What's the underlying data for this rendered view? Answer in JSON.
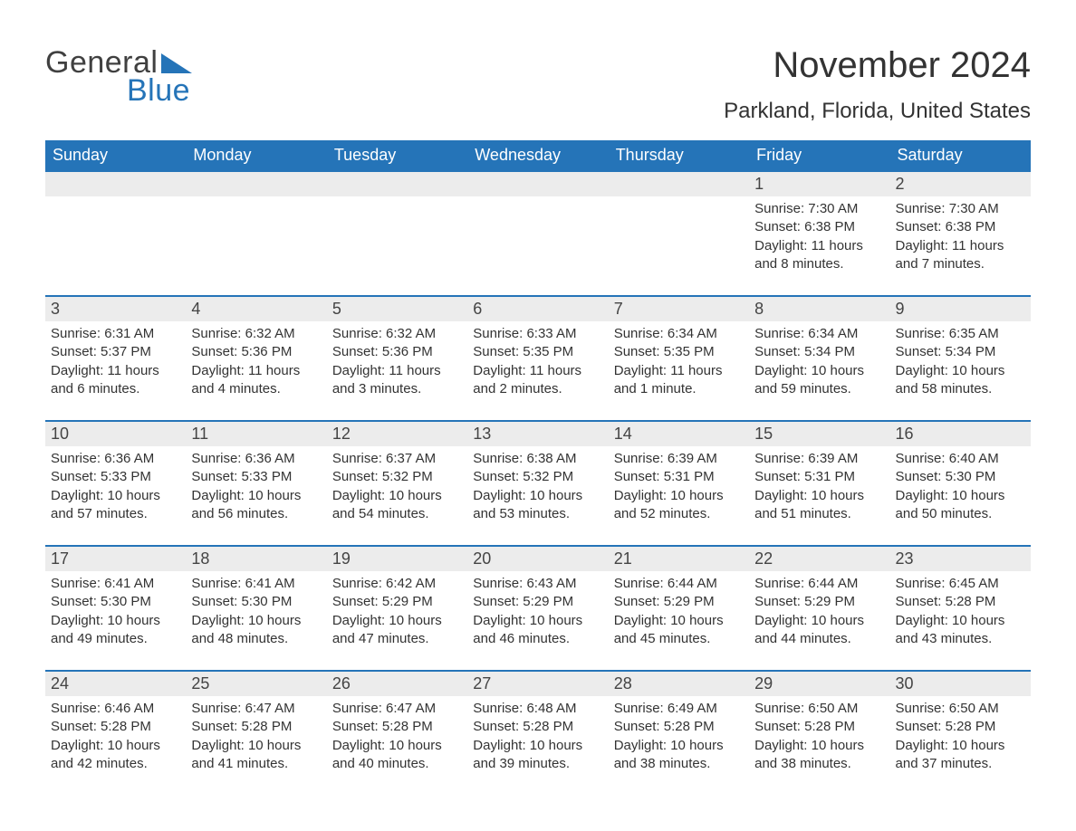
{
  "brand": {
    "word1": "General",
    "word2": "Blue",
    "word1_color": "#404040",
    "word2_color": "#2574b8"
  },
  "title": "November 2024",
  "location": "Parkland, Florida, United States",
  "colors": {
    "header_bg": "#2574b8",
    "header_text": "#ffffff",
    "daynum_bg": "#ececec",
    "row_border": "#2574b8",
    "body_text": "#333333"
  },
  "fonts": {
    "title_size": 40,
    "location_size": 24,
    "dayheader_size": 18,
    "daynum_size": 18,
    "cell_size": 15
  },
  "day_headers": [
    "Sunday",
    "Monday",
    "Tuesday",
    "Wednesday",
    "Thursday",
    "Friday",
    "Saturday"
  ],
  "weeks": [
    [
      null,
      null,
      null,
      null,
      null,
      {
        "n": "1",
        "sunrise": "Sunrise: 7:30 AM",
        "sunset": "Sunset: 6:38 PM",
        "daylight": "Daylight: 11 hours and 8 minutes."
      },
      {
        "n": "2",
        "sunrise": "Sunrise: 7:30 AM",
        "sunset": "Sunset: 6:38 PM",
        "daylight": "Daylight: 11 hours and 7 minutes."
      }
    ],
    [
      {
        "n": "3",
        "sunrise": "Sunrise: 6:31 AM",
        "sunset": "Sunset: 5:37 PM",
        "daylight": "Daylight: 11 hours and 6 minutes."
      },
      {
        "n": "4",
        "sunrise": "Sunrise: 6:32 AM",
        "sunset": "Sunset: 5:36 PM",
        "daylight": "Daylight: 11 hours and 4 minutes."
      },
      {
        "n": "5",
        "sunrise": "Sunrise: 6:32 AM",
        "sunset": "Sunset: 5:36 PM",
        "daylight": "Daylight: 11 hours and 3 minutes."
      },
      {
        "n": "6",
        "sunrise": "Sunrise: 6:33 AM",
        "sunset": "Sunset: 5:35 PM",
        "daylight": "Daylight: 11 hours and 2 minutes."
      },
      {
        "n": "7",
        "sunrise": "Sunrise: 6:34 AM",
        "sunset": "Sunset: 5:35 PM",
        "daylight": "Daylight: 11 hours and 1 minute."
      },
      {
        "n": "8",
        "sunrise": "Sunrise: 6:34 AM",
        "sunset": "Sunset: 5:34 PM",
        "daylight": "Daylight: 10 hours and 59 minutes."
      },
      {
        "n": "9",
        "sunrise": "Sunrise: 6:35 AM",
        "sunset": "Sunset: 5:34 PM",
        "daylight": "Daylight: 10 hours and 58 minutes."
      }
    ],
    [
      {
        "n": "10",
        "sunrise": "Sunrise: 6:36 AM",
        "sunset": "Sunset: 5:33 PM",
        "daylight": "Daylight: 10 hours and 57 minutes."
      },
      {
        "n": "11",
        "sunrise": "Sunrise: 6:36 AM",
        "sunset": "Sunset: 5:33 PM",
        "daylight": "Daylight: 10 hours and 56 minutes."
      },
      {
        "n": "12",
        "sunrise": "Sunrise: 6:37 AM",
        "sunset": "Sunset: 5:32 PM",
        "daylight": "Daylight: 10 hours and 54 minutes."
      },
      {
        "n": "13",
        "sunrise": "Sunrise: 6:38 AM",
        "sunset": "Sunset: 5:32 PM",
        "daylight": "Daylight: 10 hours and 53 minutes."
      },
      {
        "n": "14",
        "sunrise": "Sunrise: 6:39 AM",
        "sunset": "Sunset: 5:31 PM",
        "daylight": "Daylight: 10 hours and 52 minutes."
      },
      {
        "n": "15",
        "sunrise": "Sunrise: 6:39 AM",
        "sunset": "Sunset: 5:31 PM",
        "daylight": "Daylight: 10 hours and 51 minutes."
      },
      {
        "n": "16",
        "sunrise": "Sunrise: 6:40 AM",
        "sunset": "Sunset: 5:30 PM",
        "daylight": "Daylight: 10 hours and 50 minutes."
      }
    ],
    [
      {
        "n": "17",
        "sunrise": "Sunrise: 6:41 AM",
        "sunset": "Sunset: 5:30 PM",
        "daylight": "Daylight: 10 hours and 49 minutes."
      },
      {
        "n": "18",
        "sunrise": "Sunrise: 6:41 AM",
        "sunset": "Sunset: 5:30 PM",
        "daylight": "Daylight: 10 hours and 48 minutes."
      },
      {
        "n": "19",
        "sunrise": "Sunrise: 6:42 AM",
        "sunset": "Sunset: 5:29 PM",
        "daylight": "Daylight: 10 hours and 47 minutes."
      },
      {
        "n": "20",
        "sunrise": "Sunrise: 6:43 AM",
        "sunset": "Sunset: 5:29 PM",
        "daylight": "Daylight: 10 hours and 46 minutes."
      },
      {
        "n": "21",
        "sunrise": "Sunrise: 6:44 AM",
        "sunset": "Sunset: 5:29 PM",
        "daylight": "Daylight: 10 hours and 45 minutes."
      },
      {
        "n": "22",
        "sunrise": "Sunrise: 6:44 AM",
        "sunset": "Sunset: 5:29 PM",
        "daylight": "Daylight: 10 hours and 44 minutes."
      },
      {
        "n": "23",
        "sunrise": "Sunrise: 6:45 AM",
        "sunset": "Sunset: 5:28 PM",
        "daylight": "Daylight: 10 hours and 43 minutes."
      }
    ],
    [
      {
        "n": "24",
        "sunrise": "Sunrise: 6:46 AM",
        "sunset": "Sunset: 5:28 PM",
        "daylight": "Daylight: 10 hours and 42 minutes."
      },
      {
        "n": "25",
        "sunrise": "Sunrise: 6:47 AM",
        "sunset": "Sunset: 5:28 PM",
        "daylight": "Daylight: 10 hours and 41 minutes."
      },
      {
        "n": "26",
        "sunrise": "Sunrise: 6:47 AM",
        "sunset": "Sunset: 5:28 PM",
        "daylight": "Daylight: 10 hours and 40 minutes."
      },
      {
        "n": "27",
        "sunrise": "Sunrise: 6:48 AM",
        "sunset": "Sunset: 5:28 PM",
        "daylight": "Daylight: 10 hours and 39 minutes."
      },
      {
        "n": "28",
        "sunrise": "Sunrise: 6:49 AM",
        "sunset": "Sunset: 5:28 PM",
        "daylight": "Daylight: 10 hours and 38 minutes."
      },
      {
        "n": "29",
        "sunrise": "Sunrise: 6:50 AM",
        "sunset": "Sunset: 5:28 PM",
        "daylight": "Daylight: 10 hours and 38 minutes."
      },
      {
        "n": "30",
        "sunrise": "Sunrise: 6:50 AM",
        "sunset": "Sunset: 5:28 PM",
        "daylight": "Daylight: 10 hours and 37 minutes."
      }
    ]
  ]
}
